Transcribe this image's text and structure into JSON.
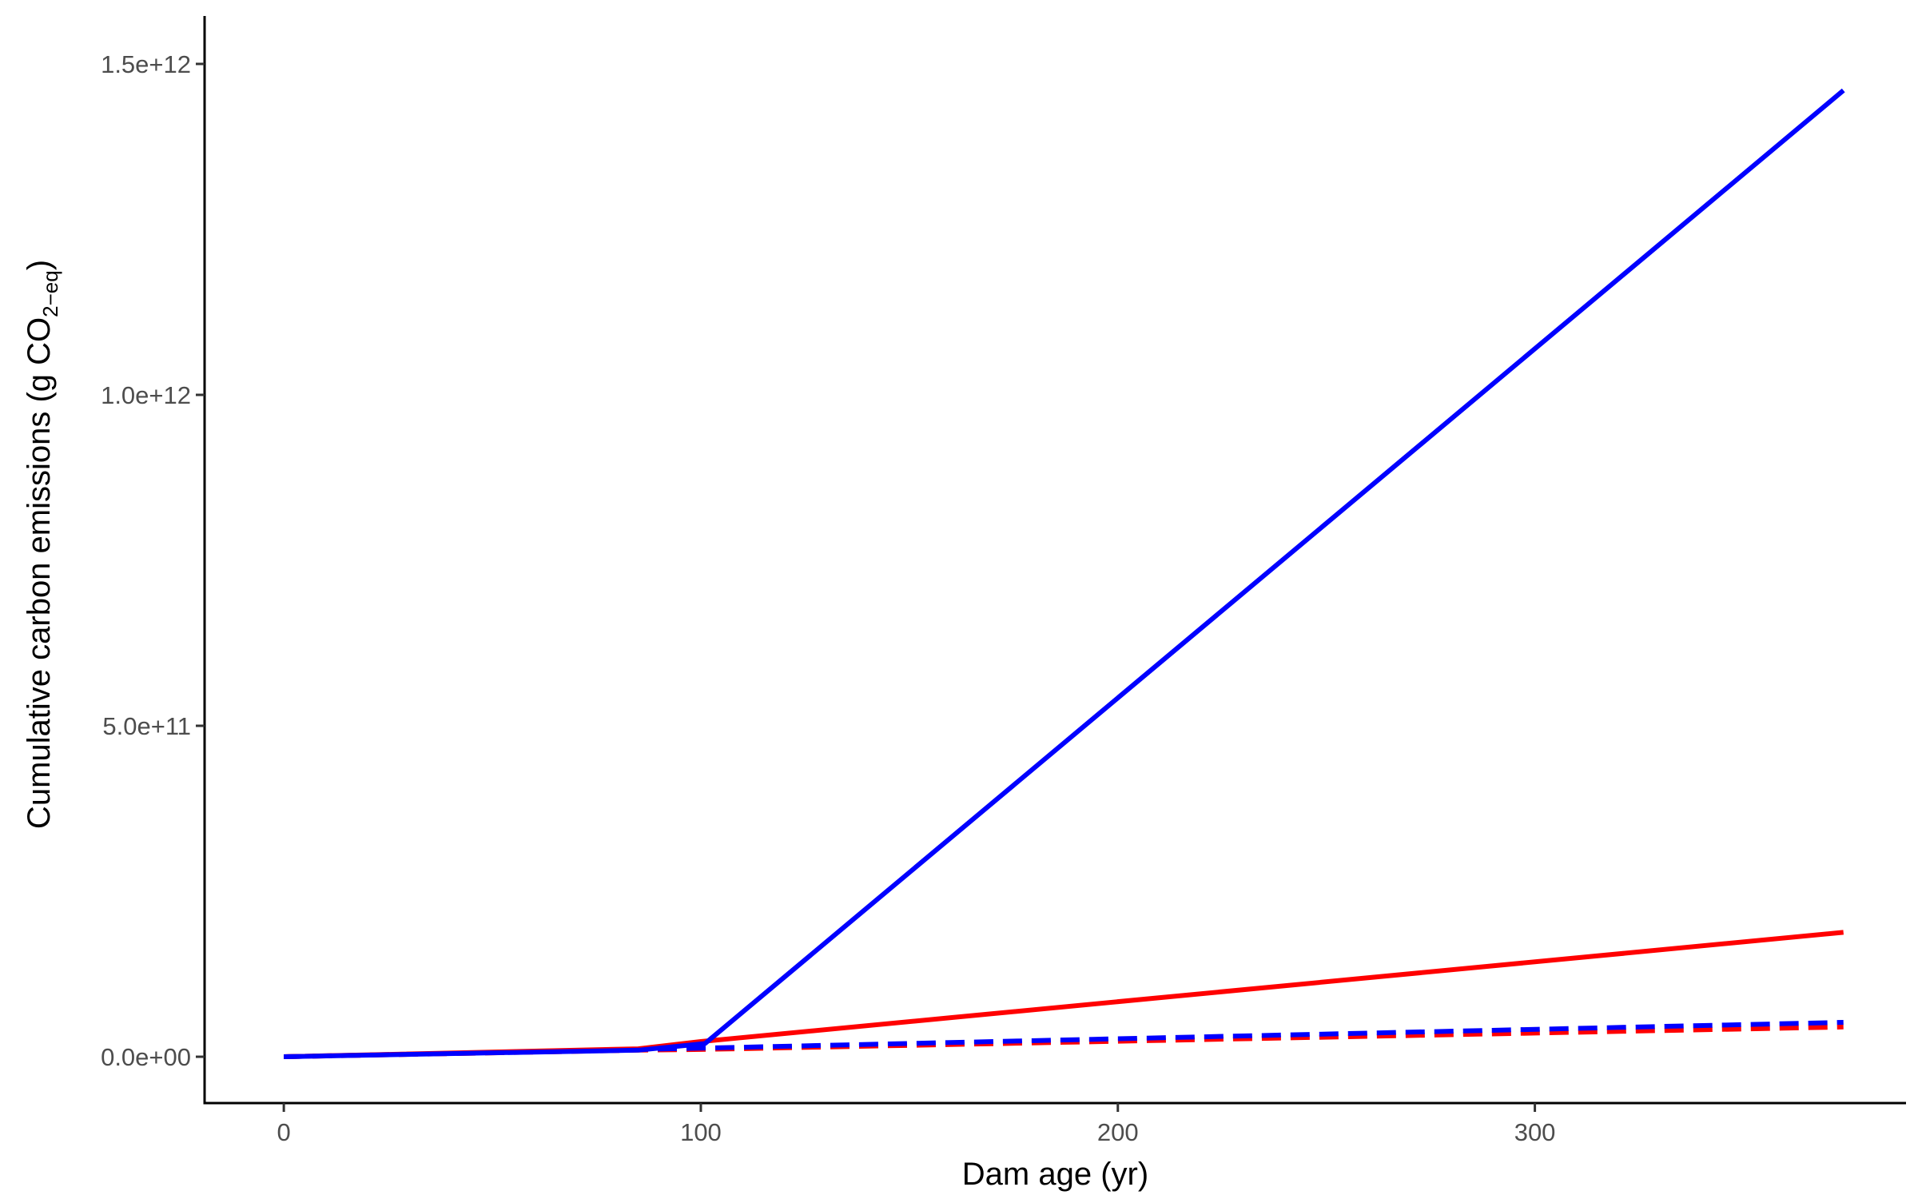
{
  "chart_data": {
    "type": "line",
    "title": "",
    "xlabel": "Dam age (yr)",
    "ylabel": {
      "main": "Cumulative carbon emissions (g CO",
      "subscript": "2−eq",
      "close": ")"
    },
    "xlim": [
      -19,
      389
    ],
    "ylim": [
      -70000000000,
      1570000000000
    ],
    "x_ticks": [
      0,
      100,
      200,
      300
    ],
    "x_tick_labels": [
      "0",
      "100",
      "200",
      "300"
    ],
    "y_ticks": [
      0,
      500000000000,
      1000000000000,
      1500000000000
    ],
    "y_tick_labels": [
      "0.0e+00",
      "5.0e+11",
      "1.0e+12",
      "1.5e+12"
    ],
    "grid": false,
    "legend": "none",
    "series": [
      {
        "color": "#ff0000",
        "style": "dashed",
        "points": [
          [
            0,
            0
          ],
          [
            85,
            10000000000
          ],
          [
            100,
            11000000000
          ],
          [
            374,
            45000000000
          ]
        ]
      },
      {
        "color": "#0000ff",
        "style": "dashed",
        "points": [
          [
            0,
            0
          ],
          [
            85,
            11000000000
          ],
          [
            100,
            13000000000
          ],
          [
            374,
            52000000000
          ]
        ]
      },
      {
        "color": "#ff0000",
        "style": "solid",
        "points": [
          [
            0,
            0
          ],
          [
            85,
            12000000000
          ],
          [
            100,
            23000000000
          ],
          [
            374,
            188000000000
          ]
        ]
      },
      {
        "color": "#0000ff",
        "style": "solid",
        "points": [
          [
            0,
            0
          ],
          [
            85,
            10000000000
          ],
          [
            101,
            20000000000
          ],
          [
            374,
            1460000000000
          ]
        ]
      }
    ]
  }
}
